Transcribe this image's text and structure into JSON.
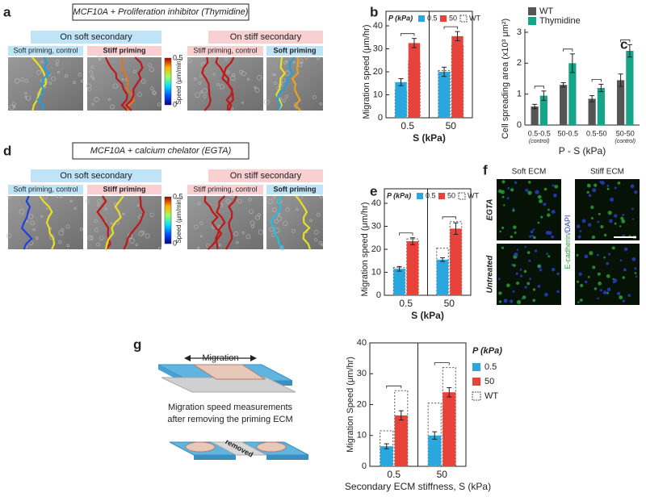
{
  "figure": {
    "panel_labels": [
      "a",
      "b",
      "c",
      "d",
      "e",
      "f",
      "g"
    ],
    "a": {
      "title": "MCF10A + Proliferation inhibitor (Thymidine)",
      "soft_header": "On soft secondary",
      "stiff_header": "On stiff secondary",
      "labels": [
        "Soft priming, control",
        "Stiff priming",
        "Stiff priming, control",
        "Soft priming"
      ],
      "colorbar_label": "Speed (μm/min)",
      "colorbar_max": "0.5",
      "colorbar_min": "0"
    },
    "d": {
      "title": "MCF10A + calcium chelator (EGTA)",
      "soft_header": "On soft secondary",
      "stiff_header": "On stiff secondary",
      "labels": [
        "Soft priming, control",
        "Stiff priming",
        "Stiff priming, control",
        "Soft priming"
      ],
      "colorbar_label": "Speed (μm/min)",
      "colorbar_max": "0.5",
      "colorbar_min": "0"
    },
    "f": {
      "columns": [
        "Soft ECM",
        "Stiff ECM"
      ],
      "rows": [
        "EGTA",
        "Untreated"
      ],
      "stain": [
        "E-cadherin",
        "/DAPI"
      ]
    },
    "g": {
      "arrow_label": "Migration",
      "caption": [
        "Migration speed measurements",
        "after removing the priming ECM"
      ],
      "gap_label": "removed"
    }
  },
  "chart_data": [
    {
      "type": "bar",
      "y_label": "Migration speed (μm/hr)",
      "x_label": "S (kPa)",
      "legend_title": "P (kPa)",
      "legend": "top",
      "categories": [
        "0.5",
        "50"
      ],
      "series": [
        {
          "name": "0.5",
          "color": "#2aa7df",
          "values": [
            15.5,
            20
          ],
          "errors": [
            1.5,
            2
          ],
          "wt_values": [
            12,
            20.5
          ]
        },
        {
          "name": "50",
          "color": "#e8433b",
          "values": [
            32.5,
            35.5
          ],
          "errors": [
            2,
            2
          ],
          "wt_values": [
            24.5,
            32
          ]
        }
      ],
      "reference_name": "WT",
      "ylim": [
        0,
        40
      ],
      "yticks": [
        0,
        10,
        20,
        30,
        40
      ],
      "frame": true
    },
    {
      "type": "bar",
      "y_label": "Cell spreading area (x10³ μm²)",
      "x_label": "P - S (kPa)",
      "legend": "top-left",
      "categories": [
        "0.5-0.5",
        "50-0.5",
        "0.5-50",
        "50-50"
      ],
      "category_colors": [
        "#3a4fa0",
        "#c0392b",
        "#3a4fa0",
        "#c0392b"
      ],
      "category_notes": [
        "(control)",
        null,
        null,
        "(control)"
      ],
      "series": [
        {
          "name": "WT",
          "color": "#555555",
          "values": [
            0.6,
            1.3,
            0.85,
            1.45
          ],
          "errors": [
            0.07,
            0.07,
            0.1,
            0.2
          ]
        },
        {
          "name": "Thymidine",
          "color": "#17a589",
          "values": [
            0.95,
            2.0,
            1.2,
            2.4
          ],
          "errors": [
            0.15,
            0.3,
            0.12,
            0.2
          ]
        }
      ],
      "ylim": [
        0,
        3
      ],
      "yticks": [
        0,
        1,
        2,
        3
      ],
      "frame": false
    },
    {
      "type": "bar",
      "y_label": "Migration speed (μm/hr)",
      "x_label": "S (kPa)",
      "legend_title": "P (kPa)",
      "legend": "top",
      "categories": [
        "0.5",
        "50"
      ],
      "series": [
        {
          "name": "0.5",
          "color": "#2aa7df",
          "values": [
            11.5,
            15.5
          ],
          "errors": [
            1,
            0.8
          ],
          "wt_values": [
            12,
            20.5
          ]
        },
        {
          "name": "50",
          "color": "#e8433b",
          "values": [
            23.5,
            29
          ],
          "errors": [
            1.5,
            2.5
          ],
          "wt_values": [
            24.5,
            32
          ]
        }
      ],
      "reference_name": "WT",
      "ylim": [
        0,
        40
      ],
      "yticks": [
        0,
        10,
        20,
        30,
        40
      ],
      "frame": true
    },
    {
      "type": "bar",
      "y_label": "Migration Speed (μm/hr)",
      "x_label": "Secondary ECM stiffness, S (kPa)",
      "legend_title": "P (kPa)",
      "legend": "right",
      "categories": [
        "0.5",
        "50"
      ],
      "category_colors": [
        "#3a4fa0",
        "#c0392b"
      ],
      "series": [
        {
          "name": "0.5",
          "color": "#2aa7df",
          "values": [
            6.5,
            10
          ],
          "errors": [
            0.8,
            1.2
          ],
          "wt_values": [
            11.5,
            20.5
          ]
        },
        {
          "name": "50",
          "color": "#e8433b",
          "values": [
            16.5,
            24
          ],
          "errors": [
            1.5,
            1.5
          ],
          "wt_values": [
            24.5,
            32
          ]
        }
      ],
      "reference_name": "WT",
      "ylim": [
        0,
        40
      ],
      "yticks": [
        0,
        10,
        20,
        30,
        40
      ],
      "frame": true
    }
  ]
}
